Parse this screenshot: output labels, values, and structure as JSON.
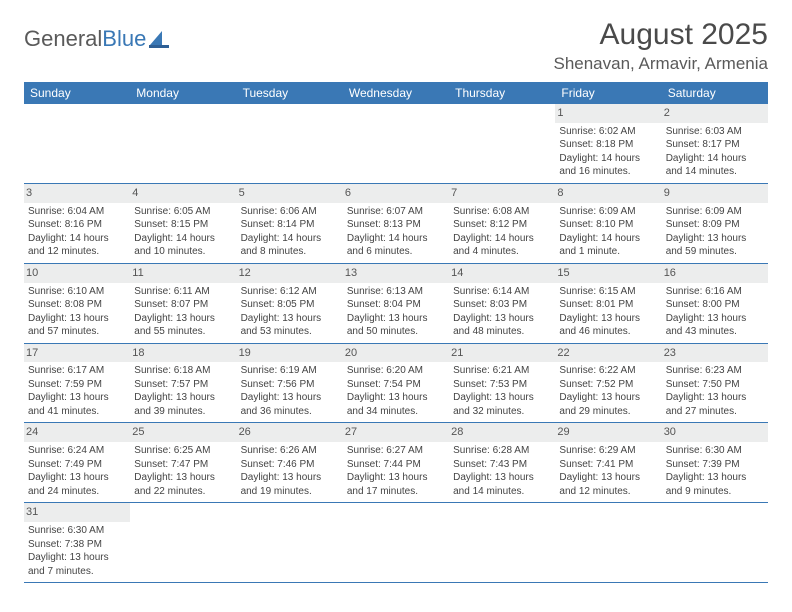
{
  "logo": {
    "text1": "General",
    "text2": "Blue"
  },
  "title": "August 2025",
  "location": "Shenavan, Armavir, Armenia",
  "colors": {
    "header_bg": "#3a78b5",
    "header_fg": "#ffffff",
    "daynum_bg": "#eceded",
    "border": "#3a78b5",
    "text": "#444444"
  },
  "dayNames": [
    "Sunday",
    "Monday",
    "Tuesday",
    "Wednesday",
    "Thursday",
    "Friday",
    "Saturday"
  ],
  "weeks": [
    [
      null,
      null,
      null,
      null,
      null,
      {
        "n": "1",
        "sr": "6:02 AM",
        "ss": "8:18 PM",
        "dl": "14 hours and 16 minutes."
      },
      {
        "n": "2",
        "sr": "6:03 AM",
        "ss": "8:17 PM",
        "dl": "14 hours and 14 minutes."
      }
    ],
    [
      {
        "n": "3",
        "sr": "6:04 AM",
        "ss": "8:16 PM",
        "dl": "14 hours and 12 minutes."
      },
      {
        "n": "4",
        "sr": "6:05 AM",
        "ss": "8:15 PM",
        "dl": "14 hours and 10 minutes."
      },
      {
        "n": "5",
        "sr": "6:06 AM",
        "ss": "8:14 PM",
        "dl": "14 hours and 8 minutes."
      },
      {
        "n": "6",
        "sr": "6:07 AM",
        "ss": "8:13 PM",
        "dl": "14 hours and 6 minutes."
      },
      {
        "n": "7",
        "sr": "6:08 AM",
        "ss": "8:12 PM",
        "dl": "14 hours and 4 minutes."
      },
      {
        "n": "8",
        "sr": "6:09 AM",
        "ss": "8:10 PM",
        "dl": "14 hours and 1 minute."
      },
      {
        "n": "9",
        "sr": "6:09 AM",
        "ss": "8:09 PM",
        "dl": "13 hours and 59 minutes."
      }
    ],
    [
      {
        "n": "10",
        "sr": "6:10 AM",
        "ss": "8:08 PM",
        "dl": "13 hours and 57 minutes."
      },
      {
        "n": "11",
        "sr": "6:11 AM",
        "ss": "8:07 PM",
        "dl": "13 hours and 55 minutes."
      },
      {
        "n": "12",
        "sr": "6:12 AM",
        "ss": "8:05 PM",
        "dl": "13 hours and 53 minutes."
      },
      {
        "n": "13",
        "sr": "6:13 AM",
        "ss": "8:04 PM",
        "dl": "13 hours and 50 minutes."
      },
      {
        "n": "14",
        "sr": "6:14 AM",
        "ss": "8:03 PM",
        "dl": "13 hours and 48 minutes."
      },
      {
        "n": "15",
        "sr": "6:15 AM",
        "ss": "8:01 PM",
        "dl": "13 hours and 46 minutes."
      },
      {
        "n": "16",
        "sr": "6:16 AM",
        "ss": "8:00 PM",
        "dl": "13 hours and 43 minutes."
      }
    ],
    [
      {
        "n": "17",
        "sr": "6:17 AM",
        "ss": "7:59 PM",
        "dl": "13 hours and 41 minutes."
      },
      {
        "n": "18",
        "sr": "6:18 AM",
        "ss": "7:57 PM",
        "dl": "13 hours and 39 minutes."
      },
      {
        "n": "19",
        "sr": "6:19 AM",
        "ss": "7:56 PM",
        "dl": "13 hours and 36 minutes."
      },
      {
        "n": "20",
        "sr": "6:20 AM",
        "ss": "7:54 PM",
        "dl": "13 hours and 34 minutes."
      },
      {
        "n": "21",
        "sr": "6:21 AM",
        "ss": "7:53 PM",
        "dl": "13 hours and 32 minutes."
      },
      {
        "n": "22",
        "sr": "6:22 AM",
        "ss": "7:52 PM",
        "dl": "13 hours and 29 minutes."
      },
      {
        "n": "23",
        "sr": "6:23 AM",
        "ss": "7:50 PM",
        "dl": "13 hours and 27 minutes."
      }
    ],
    [
      {
        "n": "24",
        "sr": "6:24 AM",
        "ss": "7:49 PM",
        "dl": "13 hours and 24 minutes."
      },
      {
        "n": "25",
        "sr": "6:25 AM",
        "ss": "7:47 PM",
        "dl": "13 hours and 22 minutes."
      },
      {
        "n": "26",
        "sr": "6:26 AM",
        "ss": "7:46 PM",
        "dl": "13 hours and 19 minutes."
      },
      {
        "n": "27",
        "sr": "6:27 AM",
        "ss": "7:44 PM",
        "dl": "13 hours and 17 minutes."
      },
      {
        "n": "28",
        "sr": "6:28 AM",
        "ss": "7:43 PM",
        "dl": "13 hours and 14 minutes."
      },
      {
        "n": "29",
        "sr": "6:29 AM",
        "ss": "7:41 PM",
        "dl": "13 hours and 12 minutes."
      },
      {
        "n": "30",
        "sr": "6:30 AM",
        "ss": "7:39 PM",
        "dl": "13 hours and 9 minutes."
      }
    ],
    [
      {
        "n": "31",
        "sr": "6:30 AM",
        "ss": "7:38 PM",
        "dl": "13 hours and 7 minutes."
      },
      null,
      null,
      null,
      null,
      null,
      null
    ]
  ],
  "labels": {
    "sunrise": "Sunrise:",
    "sunset": "Sunset:",
    "daylight": "Daylight:"
  }
}
